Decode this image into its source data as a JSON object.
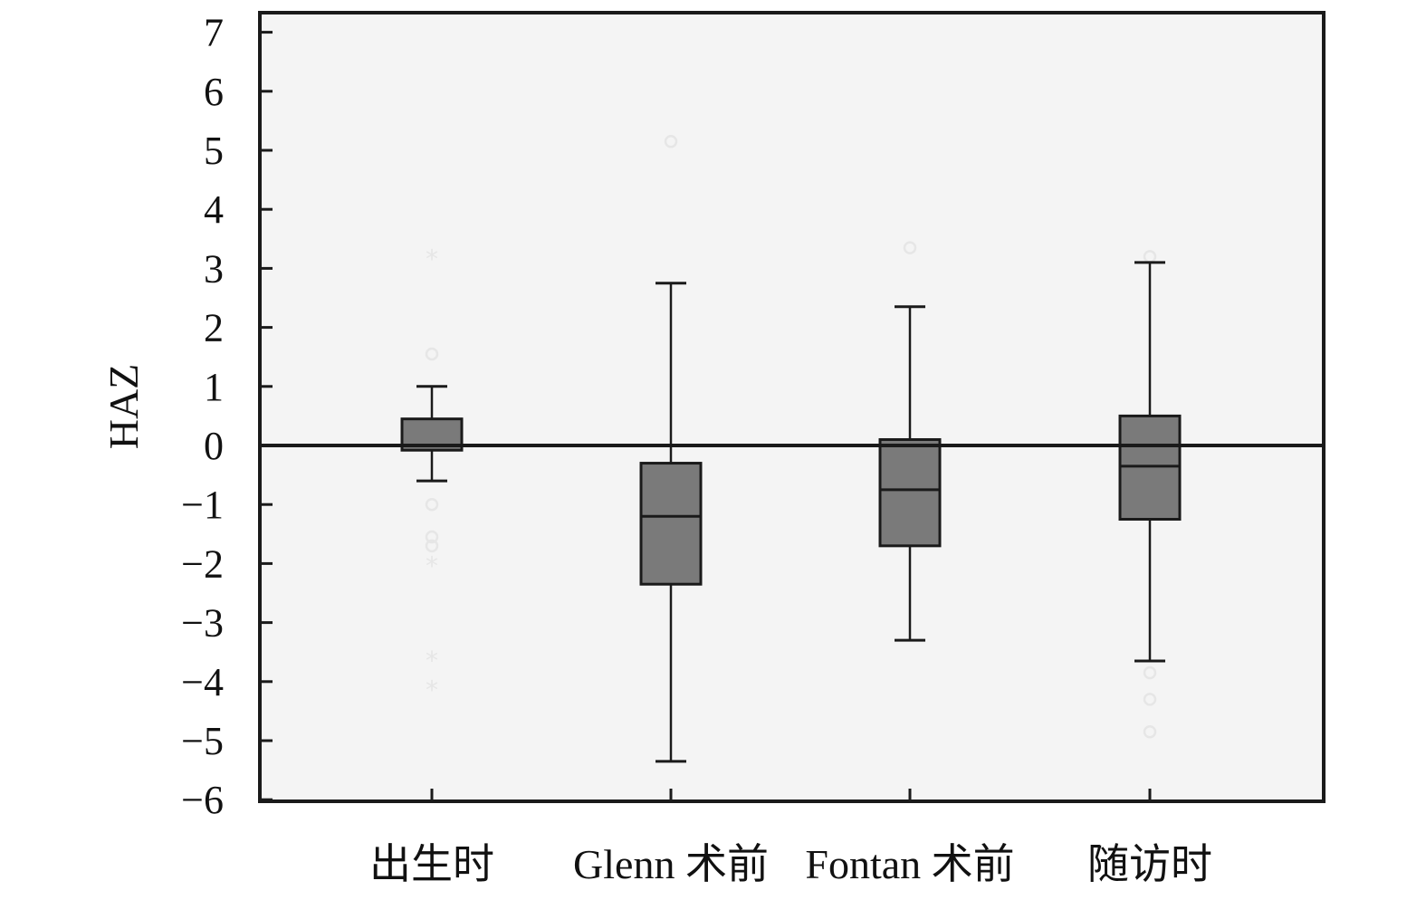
{
  "chart_data": {
    "type": "box",
    "title": "",
    "xlabel": "",
    "ylabel": "HAZ",
    "ylim": [
      -6,
      7
    ],
    "yticks": [
      7,
      6,
      5,
      4,
      3,
      2,
      1,
      0,
      -1,
      -2,
      -3,
      -4,
      -5,
      -6
    ],
    "ytick_labels": [
      "7",
      "6",
      "5",
      "4",
      "3",
      "2",
      "1",
      "0",
      "−1",
      "−2",
      "−3",
      "−4",
      "−5",
      "−6"
    ],
    "reference_line": 0,
    "grid": false,
    "categories": [
      "出生时",
      "Glenn 术前",
      "Fontan 术前",
      "随访时"
    ],
    "boxes": [
      {
        "category": "出生时",
        "whisker_low": -0.6,
        "q1": -0.08,
        "median": 0.0,
        "q3": 0.45,
        "whisker_high": 1.0,
        "outliers": [
          {
            "value": 3.15,
            "marker": "star"
          },
          {
            "value": 1.55,
            "marker": "circle"
          },
          {
            "value": -1.0,
            "marker": "circle"
          },
          {
            "value": -1.55,
            "marker": "circle"
          },
          {
            "value": -1.7,
            "marker": "circle"
          },
          {
            "value": -2.05,
            "marker": "star"
          },
          {
            "value": -3.65,
            "marker": "star"
          },
          {
            "value": -4.15,
            "marker": "star"
          }
        ]
      },
      {
        "category": "Glenn 术前",
        "whisker_low": -5.35,
        "q1": -2.35,
        "median": -1.2,
        "q3": -0.3,
        "whisker_high": 2.75,
        "outliers": [
          {
            "value": 5.15,
            "marker": "circle"
          }
        ]
      },
      {
        "category": "Fontan 术前",
        "whisker_low": -3.3,
        "q1": -1.7,
        "median": -0.75,
        "q3": 0.1,
        "whisker_high": 2.35,
        "outliers": [
          {
            "value": 3.35,
            "marker": "circle"
          }
        ]
      },
      {
        "category": "随访时",
        "whisker_low": -3.65,
        "q1": -1.25,
        "median": -0.35,
        "q3": 0.5,
        "whisker_high": 3.1,
        "outliers": [
          {
            "value": 3.2,
            "marker": "circle"
          },
          {
            "value": -3.85,
            "marker": "circle"
          },
          {
            "value": -4.3,
            "marker": "circle"
          },
          {
            "value": -4.85,
            "marker": "circle"
          }
        ]
      }
    ],
    "colors": {
      "box_fill": "#7a7a7a",
      "stroke": "#1a1a1a",
      "plot_background": "#f4f4f4",
      "outlier": "#e6e6e6"
    }
  }
}
